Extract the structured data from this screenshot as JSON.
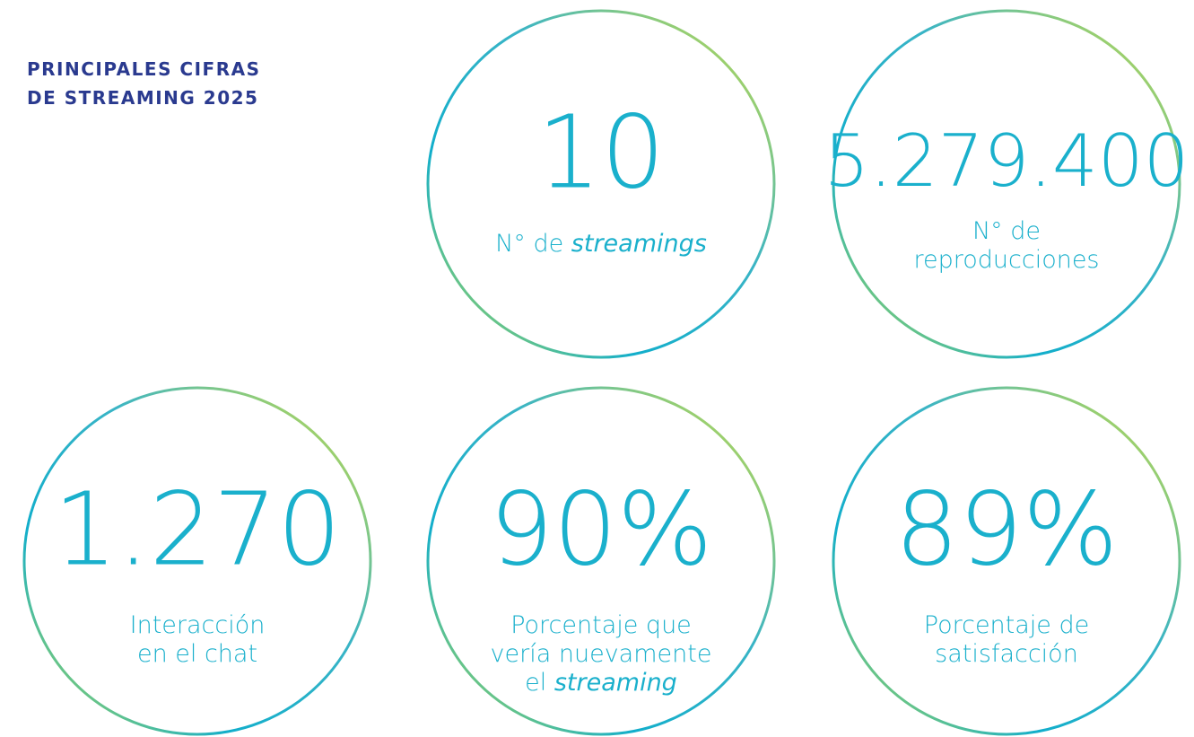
{
  "header": {
    "title_lines": [
      "PRINCIPALES CIFRAS",
      "DE STREAMING 2025"
    ]
  },
  "stats": [
    {
      "value": "10",
      "label_lines": [
        [
          {
            "text": "N° de "
          },
          {
            "text": "streamings",
            "italic": true
          }
        ]
      ]
    },
    {
      "value": "5.279.400",
      "label_lines": [
        [
          {
            "text": "N° de"
          }
        ],
        [
          {
            "text": "reproducciones"
          }
        ]
      ]
    },
    {
      "value": "1.270",
      "label_lines": [
        [
          {
            "text": "Interacción"
          }
        ],
        [
          {
            "text": "en el chat"
          }
        ]
      ]
    },
    {
      "value": "90%",
      "label_lines": [
        [
          {
            "text": "Porcentaje que"
          }
        ],
        [
          {
            "text": "vería nuevamente"
          }
        ],
        [
          {
            "text": "el "
          },
          {
            "text": "streaming",
            "italic": true
          }
        ]
      ]
    },
    {
      "value": "89%",
      "label_lines": [
        [
          {
            "text": "Porcentaje de"
          }
        ],
        [
          {
            "text": "satisfacción"
          }
        ]
      ]
    }
  ]
}
